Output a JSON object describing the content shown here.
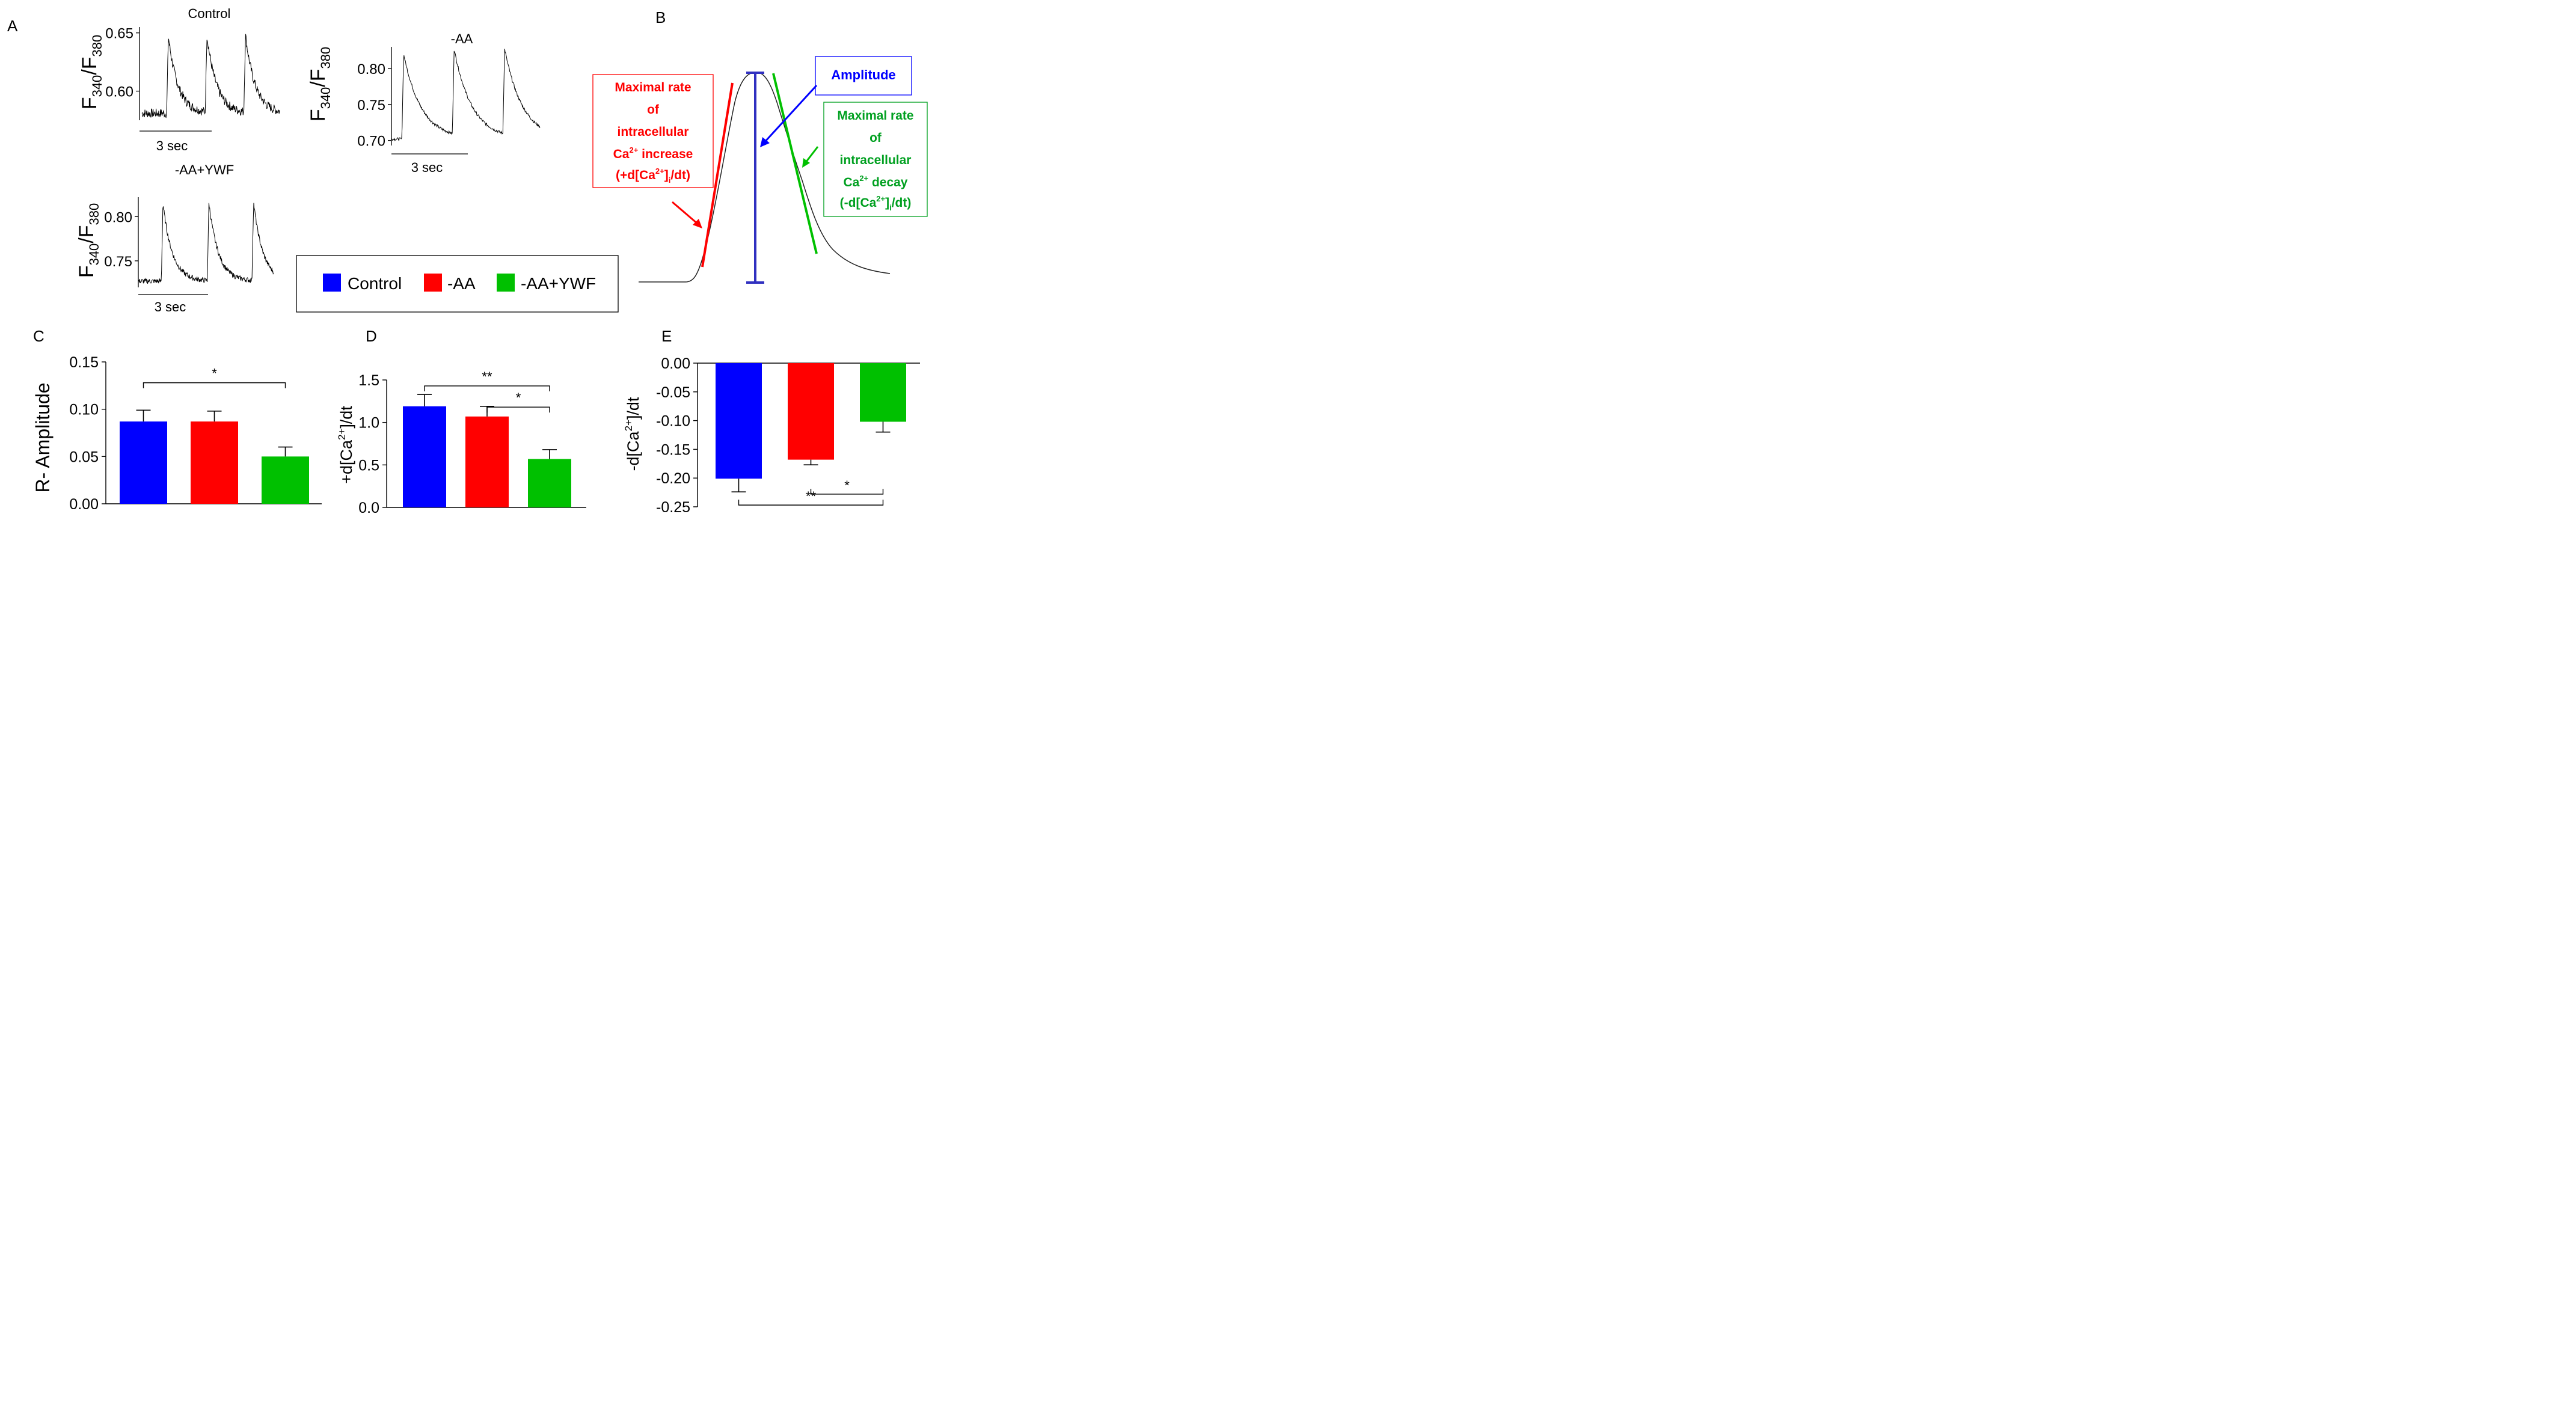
{
  "panel_letters": {
    "a": "A",
    "b": "B",
    "c": "C",
    "d": "D",
    "e": "E"
  },
  "colors": {
    "control": "#0000ff",
    "aa": "#ff0000",
    "aaywf": "#00c000",
    "green_text": "#00a020"
  },
  "panel_a": {
    "traces": [
      {
        "title": "Control",
        "y_label_main": "F",
        "sub1": "340",
        "sep": "/F",
        "sub2": "380",
        "ticks": [
          "0.65",
          "0.60"
        ],
        "tick_values": [
          0.65,
          0.6
        ],
        "ylim": [
          0.575,
          0.655
        ],
        "scalebar": "3 sec",
        "baseline": 0.581,
        "peak": 0.647,
        "noise": 0.004,
        "pre": 0.25
      },
      {
        "title": "-AA",
        "y_label_main": "F",
        "sub1": "340",
        "sep": "/F",
        "sub2": "380",
        "ticks": [
          "0.80",
          "0.75",
          "0.70"
        ],
        "tick_values": [
          0.8,
          0.75,
          0.7
        ],
        "ylim": [
          0.693,
          0.83
        ],
        "scalebar": "3 sec",
        "baseline": 0.702,
        "peak": 0.82,
        "noise": 0.002,
        "pre": 0.1
      },
      {
        "title": "-AA+YWF",
        "y_label_main": "F",
        "sub1": "340",
        "sep": "/F",
        "sub2": "380",
        "ticks": [
          "0.80",
          "0.75"
        ],
        "tick_values": [
          0.8,
          0.75
        ],
        "ylim": [
          0.72,
          0.822
        ],
        "scalebar": "3 sec",
        "baseline": 0.727,
        "peak": 0.815,
        "noise": 0.003,
        "pre": 0.25
      }
    ]
  },
  "legend": {
    "items": [
      "Control",
      "-AA",
      "-AA+YWF"
    ]
  },
  "panel_b": {
    "amplitude_label": "Amplitude",
    "red_lines": [
      "Maximal rate",
      "of",
      "intracellular",
      "increase"
    ],
    "red_ca": "Ca",
    "red_ca_sup": "2+",
    "red_deriv_prefix": "(+d[Ca",
    "red_deriv_sup": "2+",
    "red_deriv_mid": "]",
    "red_deriv_sub": "i",
    "red_deriv_end": "/dt)",
    "green_lines": [
      "Maximal rate",
      "of",
      "intracellular",
      "decay"
    ],
    "green_ca": "Ca",
    "green_ca_sup": "2+",
    "green_deriv_prefix": "(-d[Ca",
    "green_deriv_sup": "2+",
    "green_deriv_mid": "]",
    "green_deriv_sub": "i",
    "green_deriv_end": "/dt)"
  },
  "chart_data": [
    {
      "id": "C",
      "type": "bar",
      "title": "",
      "categories": [
        "Control",
        "-AA",
        "-AA+YWF"
      ],
      "values": [
        0.087,
        0.087,
        0.05
      ],
      "errors": [
        0.012,
        0.011,
        0.01
      ],
      "ylabel": "R- Amplitude",
      "ylim": [
        0,
        0.15
      ],
      "yticks": [
        0,
        0.05,
        0.1,
        0.15
      ],
      "ytick_labels": [
        "0.00",
        "0.05",
        "0.10",
        "0.15"
      ],
      "significance": [
        {
          "from": 0,
          "to": 2,
          "label": "*",
          "y": 0.128
        }
      ]
    },
    {
      "id": "D",
      "type": "bar",
      "title": "",
      "categories": [
        "Control",
        "-AA",
        "-AA+YWF"
      ],
      "values": [
        1.19,
        1.07,
        0.57
      ],
      "errors": [
        0.14,
        0.12,
        0.11
      ],
      "ylabel_prefix": "+d[Ca",
      "ylabel_sup": "2+",
      "ylabel_suffix": "]/dt",
      "ylim": [
        0,
        1.5
      ],
      "yticks": [
        0,
        0.5,
        1.0,
        1.5
      ],
      "ytick_labels": [
        "0.0",
        "0.5",
        "1.0",
        "1.5"
      ],
      "significance": [
        {
          "from": 0,
          "to": 2,
          "label": "**",
          "y": 1.43
        },
        {
          "from": 1,
          "to": 2,
          "label": "*",
          "y": 1.18
        }
      ]
    },
    {
      "id": "E",
      "type": "bar",
      "title": "",
      "categories": [
        "Control",
        "-AA",
        "-AA+YWF"
      ],
      "values": [
        -0.201,
        -0.168,
        -0.102
      ],
      "errors": [
        0.023,
        0.009,
        0.018
      ],
      "ylabel_prefix": "-d[Ca",
      "ylabel_sup": "2+",
      "ylabel_suffix": "]/dt",
      "ylim": [
        -0.25,
        0
      ],
      "yticks": [
        0,
        -0.05,
        -0.1,
        -0.15,
        -0.2,
        -0.25
      ],
      "ytick_labels": [
        "0.00",
        "-0.05",
        "-0.10",
        "-0.15",
        "-0.20",
        "-0.25"
      ],
      "significance": [
        {
          "from": 1,
          "to": 2,
          "label": "*",
          "y": -0.228
        },
        {
          "from": 0,
          "to": 2,
          "label": "**",
          "y": -0.247
        }
      ]
    }
  ]
}
